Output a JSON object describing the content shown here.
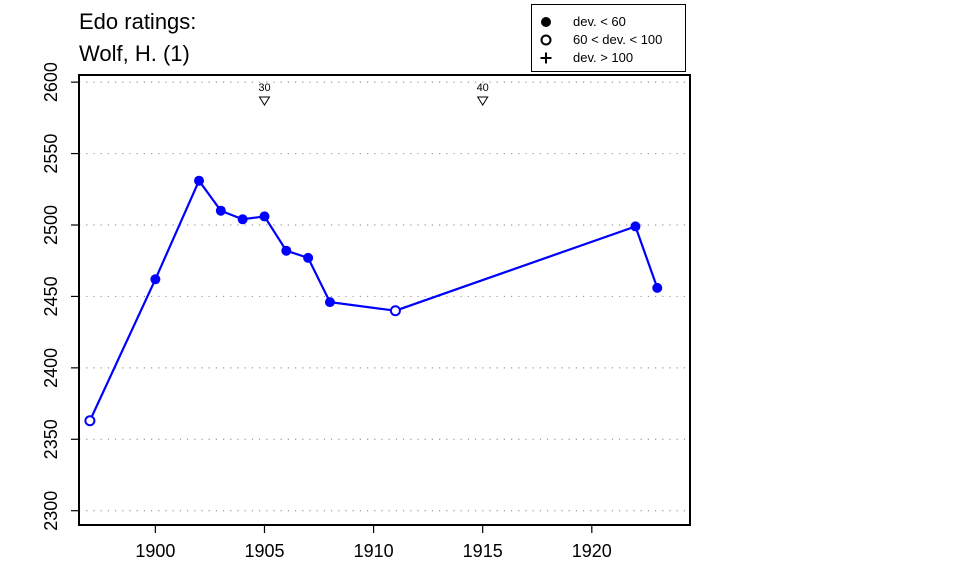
{
  "chart_data": {
    "type": "line",
    "title": "Edo ratings:",
    "subtitle": "Wolf, H. (1)",
    "xlabel": "",
    "ylabel": "",
    "xlim": [
      1896.5,
      1924.5
    ],
    "ylim": [
      2290,
      2605
    ],
    "xticks": [
      1900,
      1905,
      1910,
      1915,
      1920
    ],
    "yticks": [
      2300,
      2350,
      2400,
      2450,
      2500,
      2550,
      2600
    ],
    "grid": true,
    "legend_position": "top-right",
    "legend": [
      {
        "symbol": "filled-circle",
        "label": "dev. < 60"
      },
      {
        "symbol": "open-circle",
        "label": "60 < dev. < 100"
      },
      {
        "symbol": "plus",
        "label": "dev. > 100"
      }
    ],
    "series": [
      {
        "color": "#0000ff",
        "points": [
          {
            "x": 1897,
            "y": 2363,
            "marker": "open"
          },
          {
            "x": 1900,
            "y": 2462,
            "marker": "filled"
          },
          {
            "x": 1902,
            "y": 2531,
            "marker": "filled"
          },
          {
            "x": 1903,
            "y": 2510,
            "marker": "filled"
          },
          {
            "x": 1904,
            "y": 2504,
            "marker": "filled"
          },
          {
            "x": 1905,
            "y": 2506,
            "marker": "filled"
          },
          {
            "x": 1906,
            "y": 2482,
            "marker": "filled"
          },
          {
            "x": 1907,
            "y": 2477,
            "marker": "filled"
          },
          {
            "x": 1908,
            "y": 2446,
            "marker": "filled"
          },
          {
            "x": 1911,
            "y": 2440,
            "marker": "open"
          },
          {
            "x": 1922,
            "y": 2499,
            "marker": "filled"
          },
          {
            "x": 1923,
            "y": 2456,
            "marker": "filled"
          }
        ]
      }
    ],
    "markers": [
      {
        "x": 1905,
        "label": "30"
      },
      {
        "x": 1915,
        "label": "40"
      }
    ]
  }
}
